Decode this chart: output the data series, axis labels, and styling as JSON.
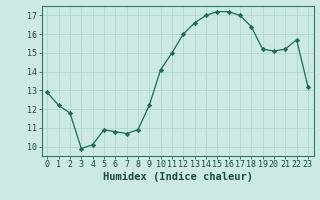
{
  "x": [
    0,
    1,
    2,
    3,
    4,
    5,
    6,
    7,
    8,
    9,
    10,
    11,
    12,
    13,
    14,
    15,
    16,
    17,
    18,
    19,
    20,
    21,
    22,
    23
  ],
  "y": [
    12.9,
    12.2,
    11.8,
    9.9,
    10.1,
    10.9,
    10.8,
    10.7,
    10.9,
    12.2,
    14.1,
    15.0,
    16.0,
    16.6,
    17.0,
    17.2,
    17.2,
    17.0,
    16.4,
    15.2,
    15.1,
    15.2,
    15.7,
    13.2
  ],
  "line_color": "#1a6b5a",
  "marker": "D",
  "marker_size": 2.2,
  "bg_color": "#cce9e4",
  "grid_color": "#b0d5d0",
  "xlabel": "Humidex (Indice chaleur)",
  "xlim": [
    -0.5,
    23.5
  ],
  "ylim": [
    9.5,
    17.5
  ],
  "yticks": [
    10,
    11,
    12,
    13,
    14,
    15,
    16,
    17
  ],
  "xticks": [
    0,
    1,
    2,
    3,
    4,
    5,
    6,
    7,
    8,
    9,
    10,
    11,
    12,
    13,
    14,
    15,
    16,
    17,
    18,
    19,
    20,
    21,
    22,
    23
  ],
  "tick_fontsize": 6.0,
  "xlabel_fontsize": 7.5,
  "spine_color": "#2d7a6a"
}
